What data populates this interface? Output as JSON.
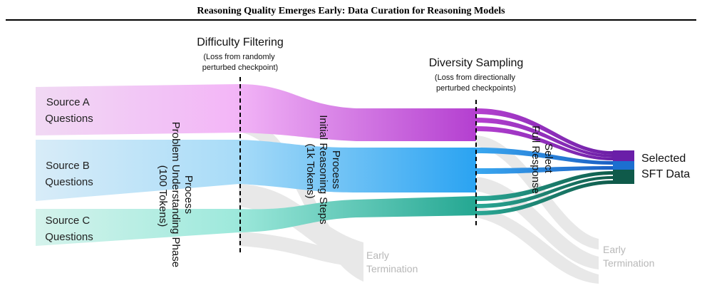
{
  "title": "Reasoning Quality Emerges Early: Data Curation for Reasoning Models",
  "sources": {
    "a": [
      "Source A",
      "Questions"
    ],
    "b": [
      "Source B",
      "Questions"
    ],
    "c": [
      "Source C",
      "Questions"
    ]
  },
  "stages": {
    "difficulty": {
      "title": "Difficulty Filtering",
      "note": [
        "(Loss from randomly",
        "perturbed checkpoint)"
      ]
    },
    "diversity": {
      "title": "Diversity Sampling",
      "note": [
        "(Loss from directionally",
        "perturbed checkpoints)"
      ]
    }
  },
  "process_labels": {
    "problem": [
      "Process",
      "Problem Understanding Phase",
      "(100 Tokens)"
    ],
    "reasoning": [
      "Process",
      "Initial Reasoning Steps",
      "(1k Tokens)"
    ],
    "select": [
      "Select",
      "Full Response"
    ]
  },
  "early_termination": [
    "Early",
    "Termination"
  ],
  "output": [
    "Selected",
    "SFT Data"
  ],
  "colors": {
    "source_a": "#c44fd6",
    "source_b": "#3aa8f0",
    "source_c": "#2aa896",
    "selected_a": "#6a1fa8",
    "selected_b": "#1c6fd0",
    "selected_c": "#0f5a4a",
    "terminated": "#d9d9d9"
  }
}
